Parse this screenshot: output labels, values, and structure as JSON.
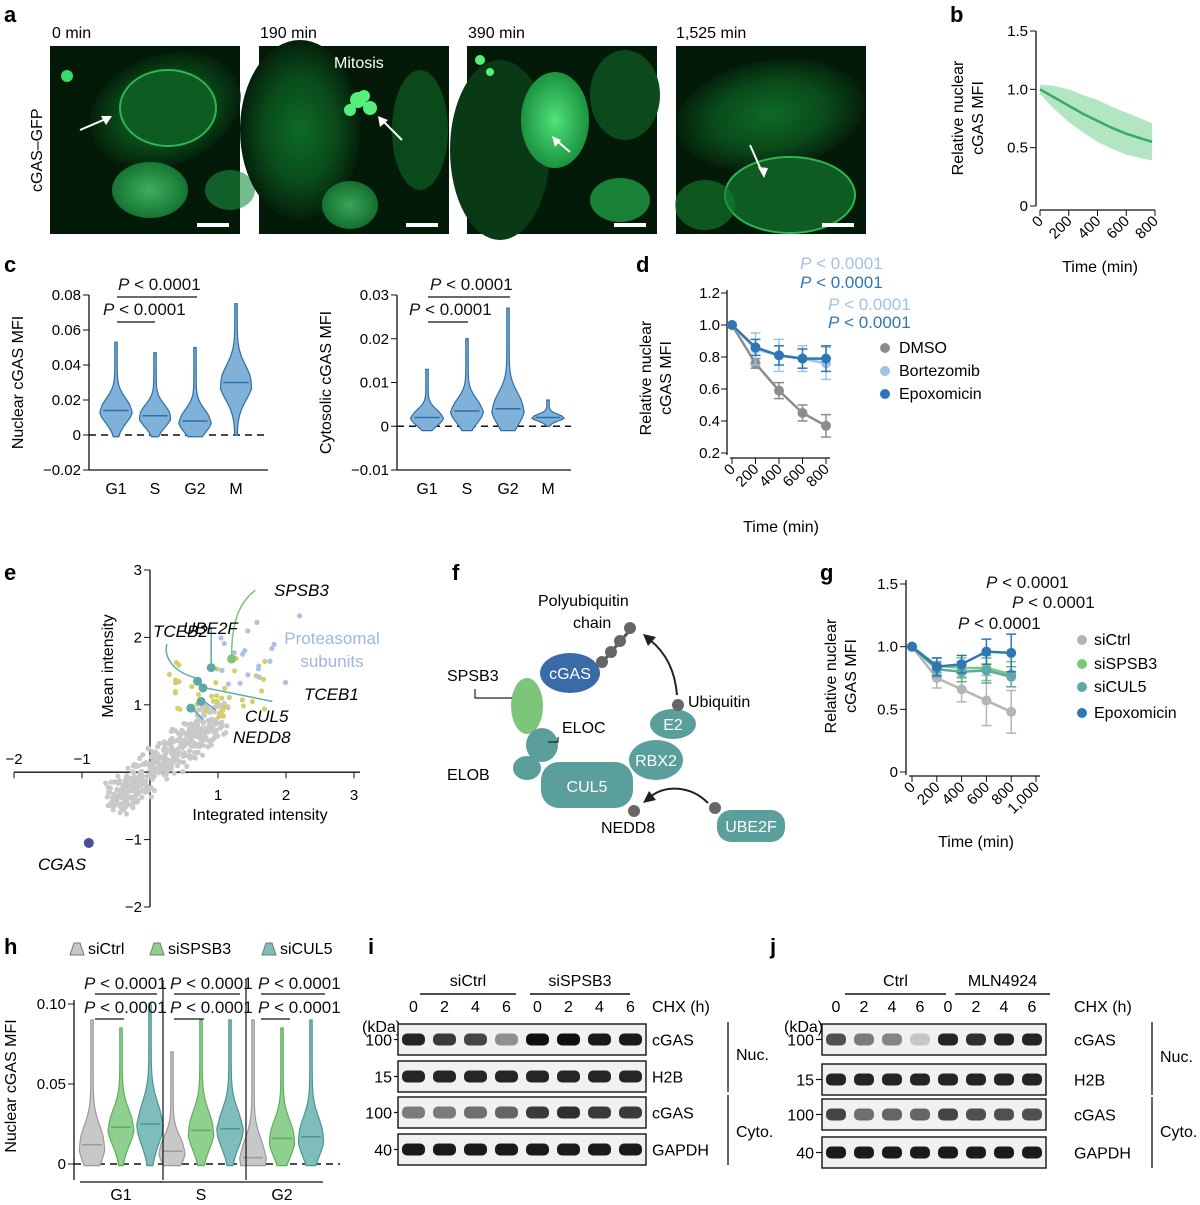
{
  "panel_letters": [
    "a",
    "b",
    "c",
    "d",
    "e",
    "f",
    "g",
    "h",
    "i",
    "j"
  ],
  "panel_a": {
    "row_label": "cGAS–GFP",
    "timepoints": [
      "0 min",
      "190 min",
      "390 min",
      "1,525 min"
    ],
    "annotation": "Mitosis"
  },
  "chart_data": [
    {
      "panel": "b",
      "type": "line",
      "ylabel": "Relative nuclear cGAS MFI",
      "xlabel": "Time (min)",
      "xlim": [
        0,
        800
      ],
      "ylim": [
        0,
        1.5
      ],
      "xticks": [
        "0",
        "200",
        "400",
        "600",
        "800"
      ],
      "yticks": [
        "0",
        "0.5",
        "1.0",
        "1.5"
      ],
      "series": [
        {
          "x": [
            0,
            100,
            200,
            300,
            400,
            500,
            600,
            700,
            780
          ],
          "y": [
            1.0,
            0.93,
            0.86,
            0.79,
            0.73,
            0.67,
            0.62,
            0.58,
            0.55
          ],
          "sd": [
            0.04,
            0.1,
            0.14,
            0.16,
            0.18,
            0.18,
            0.18,
            0.17,
            0.16
          ]
        }
      ],
      "color": "#3aa866"
    },
    {
      "panel": "c-nuclear",
      "type": "violin",
      "ylabel": "Nuclear cGAS MFI",
      "categories": [
        "G1",
        "S",
        "G2",
        "M"
      ],
      "ylim": [
        -0.02,
        0.08
      ],
      "yticks": [
        "−0.02",
        "0",
        "0.02",
        "0.04",
        "0.06",
        "0.08"
      ],
      "medians": [
        0.014,
        0.011,
        0.008,
        0.03
      ],
      "spread_min": [
        -0.001,
        -0.001,
        -0.001,
        0.0
      ],
      "spread_max": [
        0.053,
        0.047,
        0.05,
        0.075
      ],
      "pvalues": [
        "P < 0.0001",
        "P < 0.0001"
      ]
    },
    {
      "panel": "c-cytosolic",
      "type": "violin",
      "ylabel": "Cytosolic cGAS MFI",
      "categories": [
        "G1",
        "S",
        "G2",
        "M"
      ],
      "ylim": [
        -0.01,
        0.03
      ],
      "yticks": [
        "−0.01",
        "0",
        "0.01",
        "0.02",
        "0.03"
      ],
      "medians": [
        0.002,
        0.0035,
        0.004,
        0.002
      ],
      "spread_min": [
        -0.001,
        -0.001,
        -0.001,
        0.0
      ],
      "spread_max": [
        0.013,
        0.02,
        0.027,
        0.006
      ],
      "pvalues": [
        "P < 0.0001",
        "P < 0.0001"
      ]
    },
    {
      "panel": "d",
      "type": "line",
      "ylabel": "Relative nuclear cGAS MFI",
      "xlabel": "Time (min)",
      "x": [
        0,
        200,
        400,
        600,
        800
      ],
      "xticks": [
        "0",
        "200",
        "400",
        "600",
        "800"
      ],
      "yticks": [
        "0.2",
        "0.4",
        "0.6",
        "0.8",
        "1.0",
        "1.2"
      ],
      "ylim": [
        0.2,
        1.2
      ],
      "series": [
        {
          "name": "DMSO",
          "values": [
            1.0,
            0.76,
            0.59,
            0.45,
            0.37
          ],
          "color": "#8c8c8c"
        },
        {
          "name": "Bortezomib",
          "values": [
            1.0,
            0.85,
            0.81,
            0.79,
            0.76
          ],
          "color": "#9fc3e6"
        },
        {
          "name": "Epoxomicin",
          "values": [
            1.0,
            0.86,
            0.81,
            0.79,
            0.79
          ],
          "color": "#2f77b4"
        }
      ],
      "pvalues": [
        {
          "text": "P < 0.0001",
          "color": "#9fc3e6"
        },
        {
          "text": "P < 0.0001",
          "color": "#2f77b4"
        },
        {
          "text": "P < 0.0001",
          "color": "#9fc3e6"
        },
        {
          "text": "P < 0.0001",
          "color": "#2f77b4"
        }
      ]
    },
    {
      "panel": "e",
      "type": "scatter",
      "xlabel": "Integrated intensity",
      "ylabel": "Mean intensity",
      "xlim": [
        -2,
        3
      ],
      "ylim": [
        -2,
        3
      ],
      "xticks": [
        "−2",
        "−1",
        "0",
        "1",
        "2",
        "3"
      ],
      "yticks": [
        "−2",
        "−1",
        "1",
        "2",
        "3"
      ],
      "labels": [
        {
          "text": "SPSB3",
          "x": 1.2,
          "y": 1.68
        },
        {
          "text": "UBE2F",
          "x": 0.9,
          "y": 1.55
        },
        {
          "text": "TCEB2",
          "x": 0.72,
          "y": 1.43
        },
        {
          "text": "TCEB1",
          "x": 0.75,
          "y": 1.25
        },
        {
          "text": "CUL5",
          "x": 0.78,
          "y": 1.05
        },
        {
          "text": "NEDD8",
          "x": 0.68,
          "y": 0.95
        },
        {
          "text": "CGAS",
          "x": -0.9,
          "y": -1.05
        }
      ],
      "legend_text": "Proteasomal subunits"
    },
    {
      "panel": "g",
      "type": "line",
      "ylabel": "Relative nuclear cGAS MFI",
      "xlabel": "Time (min)",
      "x": [
        0,
        200,
        400,
        600,
        800
      ],
      "xticks": [
        "0",
        "200",
        "400",
        "600",
        "800",
        "1,000"
      ],
      "yticks": [
        "0",
        "0.5",
        "1.0",
        "1.5"
      ],
      "ylim": [
        0,
        1.5
      ],
      "series": [
        {
          "name": "siCtrl",
          "values": [
            1.0,
            0.75,
            0.66,
            0.57,
            0.48
          ],
          "color": "#b5b5b5"
        },
        {
          "name": "siSPSB3",
          "values": [
            1.0,
            0.85,
            0.83,
            0.83,
            0.78
          ],
          "color": "#7ac77a"
        },
        {
          "name": "siCUL5",
          "values": [
            1.0,
            0.82,
            0.8,
            0.81,
            0.76
          ],
          "color": "#5fa8a8"
        },
        {
          "name": "Epoxomicin",
          "values": [
            1.0,
            0.84,
            0.86,
            0.96,
            0.95
          ],
          "color": "#2f77b4"
        }
      ],
      "pvalues": [
        "P < 0.0001",
        "P < 0.0001",
        "P < 0.0001"
      ]
    },
    {
      "panel": "h",
      "type": "violin",
      "ylabel": "Nuclear cGAS MFI",
      "groups": [
        "G1",
        "S",
        "G2"
      ],
      "series": [
        {
          "name": "siCtrl",
          "medians": [
            0.012,
            0.008,
            0.004
          ],
          "max": [
            0.09,
            0.07,
            0.09
          ],
          "color": "#c8c8c8"
        },
        {
          "name": "siSPSB3",
          "medians": [
            0.023,
            0.021,
            0.016
          ],
          "max": [
            0.085,
            0.09,
            0.085
          ],
          "color": "#8fd08f"
        },
        {
          "name": "siCUL5",
          "medians": [
            0.025,
            0.022,
            0.017
          ],
          "max": [
            0.1,
            0.09,
            0.09
          ],
          "color": "#7fbcbc"
        }
      ],
      "ylim": [
        0,
        0.1
      ],
      "yticks": [
        "0",
        "0.05",
        "0.10"
      ],
      "pvalues": [
        "P < 0.0001",
        "P < 0.0001",
        "P < 0.0001",
        "P < 0.0001",
        "P < 0.0001",
        "P < 0.0001"
      ]
    }
  ],
  "panel_f": {
    "labels": {
      "poly": "Polyubiquitin",
      "chain": "chain",
      "cgas": "cGAS",
      "spsb3": "SPSB3",
      "eloc": "ELOC",
      "elob": "ELOB",
      "cul5": "CUL5",
      "rbx2": "RBX2",
      "e2": "E2",
      "ubiquitin": "Ubiquitin",
      "nedd8": "NEDD8",
      "ube2f": "UBE2F"
    }
  },
  "panel_i": {
    "groups": [
      "siCtrl",
      "siSPSB3"
    ],
    "lanes": [
      "0",
      "2",
      "4",
      "6",
      "0",
      "2",
      "4",
      "6"
    ],
    "chx": "CHX (h)",
    "kda": "(kDa)",
    "blots": [
      {
        "marker": "100",
        "protein": "cGAS",
        "intensity": [
          0.9,
          0.8,
          0.75,
          0.4,
          1.0,
          1.0,
          0.95,
          0.95
        ]
      },
      {
        "marker": "15",
        "protein": "H2B",
        "intensity": [
          0.9,
          0.9,
          0.9,
          0.9,
          0.9,
          0.9,
          0.9,
          0.9
        ]
      },
      {
        "marker": "100",
        "protein": "cGAS",
        "intensity": [
          0.5,
          0.5,
          0.55,
          0.6,
          0.8,
          0.85,
          0.8,
          0.8
        ]
      },
      {
        "marker": "40",
        "protein": "GAPDH",
        "intensity": [
          0.95,
          0.95,
          0.95,
          0.95,
          0.95,
          0.95,
          0.95,
          0.95
        ]
      }
    ],
    "fraction_labels": [
      "Nuc.",
      "Cyto."
    ]
  },
  "panel_j": {
    "groups": [
      "Ctrl",
      "MLN4924"
    ],
    "lanes": [
      "0",
      "2",
      "4",
      "6",
      "0",
      "2",
      "4",
      "6"
    ],
    "chx": "CHX (h)",
    "kda": "(kDa)",
    "blots": [
      {
        "marker": "100",
        "protein": "cGAS",
        "intensity": [
          0.7,
          0.5,
          0.45,
          0.15,
          0.9,
          0.85,
          0.9,
          0.9
        ]
      },
      {
        "marker": "15",
        "protein": "H2B",
        "intensity": [
          0.9,
          0.9,
          0.9,
          0.9,
          0.9,
          0.9,
          0.9,
          0.9
        ]
      },
      {
        "marker": "100",
        "protein": "cGAS",
        "intensity": [
          0.75,
          0.55,
          0.6,
          0.6,
          0.75,
          0.7,
          0.7,
          0.7
        ]
      },
      {
        "marker": "40",
        "protein": "GAPDH",
        "intensity": [
          0.95,
          0.95,
          0.95,
          0.95,
          0.95,
          0.95,
          0.95,
          0.95
        ]
      }
    ],
    "fraction_labels": [
      "Nuc.",
      "Cyto."
    ]
  },
  "colors": {
    "gfp": "#2fd35a",
    "cgas_node": "#3a6aa8",
    "spsb3_node": "#6fbf6f",
    "teal_node": "#5a9f9c",
    "grey_dot": "#6e6e6e"
  }
}
